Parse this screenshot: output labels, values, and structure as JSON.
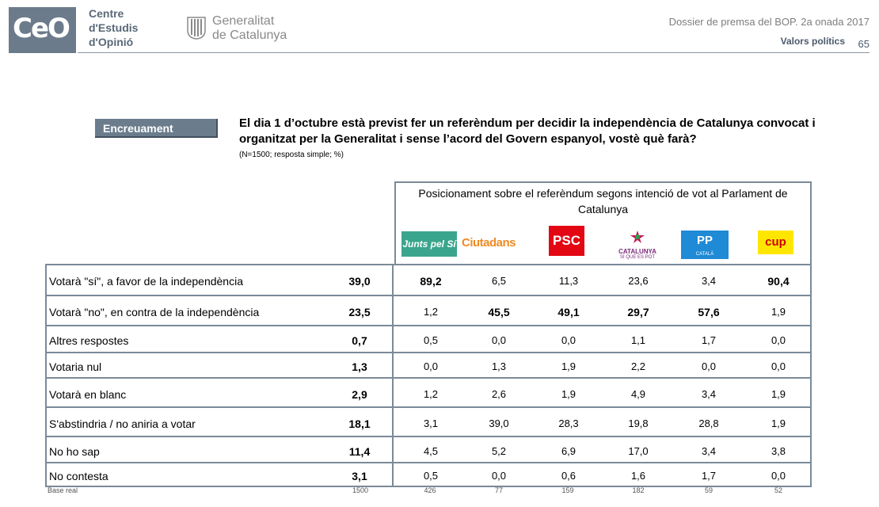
{
  "header": {
    "logo_text": "CeO",
    "org_lines": [
      "Centre",
      "d'Estudis",
      "d'Opinió"
    ],
    "gov_lines": [
      "Generalitat",
      "de Catalunya"
    ],
    "dossier": "Dossier de premsa del BOP. 2a onada 2017",
    "section": "Valors polítics",
    "page": "65"
  },
  "tag": "Encreuament",
  "question": "El dia 1 d’octubre està previst fer un referèndum per decidir la independència de Catalunya convocat i organitzat per la Generalitat i sense l’acord del Govern espanyol, vostè què farà?",
  "note": "(N=1500; resposta simple; %)",
  "party_header": "Posicionament sobre el referèndum segons intenció de vot al Parlament de Catalunya",
  "parties": [
    {
      "name": "Junts pel Sí",
      "logo_text": "Junts pel Sí",
      "color": "#3aa58c"
    },
    {
      "name": "Ciutadans",
      "logo_text": "Ciutadans",
      "color": "#f08a24"
    },
    {
      "name": "PSC",
      "logo_text": "PSC",
      "color": "#e30613"
    },
    {
      "name": "Catalunya Sí que es Pot",
      "logo_text": "CATALUNYA",
      "sub_text": "SÍ QUE ES POT",
      "color": "#7a2a7a"
    },
    {
      "name": "PP",
      "logo_text": "PP",
      "sub_text": "CATALÀ",
      "color": "#1f8ad6"
    },
    {
      "name": "CUP",
      "logo_text": "cup",
      "color": "#ffe600"
    }
  ],
  "rows": [
    {
      "label": "Votarà \"sí\", a favor de la  independència",
      "total": "39,0",
      "values": [
        "89,2",
        "6,5",
        "11,3",
        "23,6",
        "3,4",
        "90,4"
      ],
      "bold": [
        true,
        false,
        false,
        false,
        false,
        true
      ]
    },
    {
      "label": "Votarà \"no\", en contra de la independència",
      "total": "23,5",
      "values": [
        "1,2",
        "45,5",
        "49,1",
        "29,7",
        "57,6",
        "1,9"
      ],
      "bold": [
        false,
        true,
        true,
        true,
        true,
        false
      ]
    },
    {
      "label": "Altres respostes",
      "total": "0,7",
      "values": [
        "0,5",
        "0,0",
        "0,0",
        "1,1",
        "1,7",
        "0,0"
      ],
      "bold": [
        false,
        false,
        false,
        false,
        false,
        false
      ]
    },
    {
      "label": "Votaria nul",
      "total": "1,3",
      "values": [
        "0,0",
        "1,3",
        "1,9",
        "2,2",
        "0,0",
        "0,0"
      ],
      "bold": [
        false,
        false,
        false,
        false,
        false,
        false
      ]
    },
    {
      "label": "Votarà en blanc",
      "total": "2,9",
      "values": [
        "1,2",
        "2,6",
        "1,9",
        "4,9",
        "3,4",
        "1,9"
      ],
      "bold": [
        false,
        false,
        false,
        false,
        false,
        false
      ]
    },
    {
      "label": "S'abstindria / no aniria a votar",
      "total": "18,1",
      "values": [
        "3,1",
        "39,0",
        "28,3",
        "19,8",
        "28,8",
        "1,9"
      ],
      "bold": [
        false,
        false,
        false,
        false,
        false,
        false
      ]
    },
    {
      "label": "No ho sap",
      "total": "11,4",
      "values": [
        "4,5",
        "5,2",
        "6,9",
        "17,0",
        "3,4",
        "3,8"
      ],
      "bold": [
        false,
        false,
        false,
        false,
        false,
        false
      ]
    },
    {
      "label": "No contesta",
      "total": "3,1",
      "values": [
        "0,5",
        "0,0",
        "0,6",
        "1,6",
        "1,7",
        "0,0"
      ],
      "bold": [
        false,
        false,
        false,
        false,
        false,
        false
      ]
    }
  ],
  "base": {
    "label": "Base real",
    "total": "1500",
    "values": [
      "426",
      "77",
      "159",
      "182",
      "59",
      "52"
    ]
  }
}
